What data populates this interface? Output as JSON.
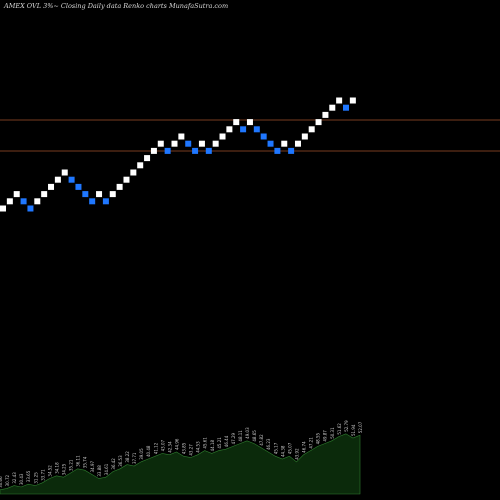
{
  "chart_data": {
    "type": "renko",
    "title": "AMEX  OVL  3%~  Closing Daily data  Renko  charts MunafaSutra.com",
    "reference_lines": [
      "upper",
      "lower"
    ],
    "bricks": [
      {
        "level": 0,
        "dir": "up"
      },
      {
        "level": 1,
        "dir": "up"
      },
      {
        "level": 2,
        "dir": "up"
      },
      {
        "level": 1,
        "dir": "down"
      },
      {
        "level": 0,
        "dir": "down"
      },
      {
        "level": 1,
        "dir": "up"
      },
      {
        "level": 2,
        "dir": "up"
      },
      {
        "level": 3,
        "dir": "up"
      },
      {
        "level": 4,
        "dir": "up"
      },
      {
        "level": 5,
        "dir": "up"
      },
      {
        "level": 4,
        "dir": "down"
      },
      {
        "level": 3,
        "dir": "down"
      },
      {
        "level": 2,
        "dir": "down"
      },
      {
        "level": 1,
        "dir": "down"
      },
      {
        "level": 2,
        "dir": "up"
      },
      {
        "level": 1,
        "dir": "down"
      },
      {
        "level": 2,
        "dir": "up"
      },
      {
        "level": 3,
        "dir": "up"
      },
      {
        "level": 4,
        "dir": "up"
      },
      {
        "level": 5,
        "dir": "up"
      },
      {
        "level": 6,
        "dir": "up"
      },
      {
        "level": 7,
        "dir": "up"
      },
      {
        "level": 8,
        "dir": "up"
      },
      {
        "level": 9,
        "dir": "up"
      },
      {
        "level": 8,
        "dir": "down"
      },
      {
        "level": 9,
        "dir": "up"
      },
      {
        "level": 10,
        "dir": "up"
      },
      {
        "level": 9,
        "dir": "down"
      },
      {
        "level": 8,
        "dir": "down"
      },
      {
        "level": 9,
        "dir": "up"
      },
      {
        "level": 8,
        "dir": "down"
      },
      {
        "level": 9,
        "dir": "up"
      },
      {
        "level": 10,
        "dir": "up"
      },
      {
        "level": 11,
        "dir": "up"
      },
      {
        "level": 12,
        "dir": "up"
      },
      {
        "level": 11,
        "dir": "down"
      },
      {
        "level": 12,
        "dir": "up"
      },
      {
        "level": 11,
        "dir": "down"
      },
      {
        "level": 10,
        "dir": "down"
      },
      {
        "level": 9,
        "dir": "down"
      },
      {
        "level": 8,
        "dir": "down"
      },
      {
        "level": 9,
        "dir": "up"
      },
      {
        "level": 8,
        "dir": "down"
      },
      {
        "level": 9,
        "dir": "up"
      },
      {
        "level": 10,
        "dir": "up"
      },
      {
        "level": 11,
        "dir": "up"
      },
      {
        "level": 12,
        "dir": "up"
      },
      {
        "level": 13,
        "dir": "up"
      },
      {
        "level": 14,
        "dir": "up"
      },
      {
        "level": 15,
        "dir": "up"
      },
      {
        "level": 14,
        "dir": "down"
      },
      {
        "level": 15,
        "dir": "up"
      }
    ],
    "volume_labels": [
      "30.66",
      "30.72",
      "32.43",
      "30.43",
      "33.65",
      "31.25",
      "33.71",
      "34.52",
      "34.18",
      "34.25",
      "35.21",
      "36.11",
      "35.74",
      "34.97",
      "33.88",
      "34.61",
      "36.42",
      "36.53",
      "38.22",
      "37.71",
      "39.05",
      "40.48",
      "41.12",
      "43.07",
      "42.34",
      "44.96",
      "43.85",
      "43.27",
      "44.53",
      "45.61",
      "44.18",
      "45.21",
      "46.44",
      "47.29",
      "48.11",
      "49.03",
      "48.65",
      "47.82",
      "46.23",
      "45.17",
      "44.38",
      "45.07",
      "43.92",
      "46.74",
      "47.21",
      "48.55",
      "49.87",
      "50.31",
      "51.62",
      "52.79",
      "51.94",
      "52.07"
    ],
    "volume_heights": [
      3,
      4,
      6,
      5,
      7,
      6,
      8,
      11,
      13,
      12,
      15,
      18,
      17,
      14,
      11,
      12,
      16,
      18,
      21,
      20,
      23,
      25,
      27,
      29,
      28,
      30,
      27,
      26,
      28,
      31,
      29,
      31,
      32,
      34,
      36,
      38,
      36,
      33,
      30,
      27,
      25,
      27,
      23,
      28,
      31,
      34,
      36,
      38,
      41,
      43,
      40,
      42
    ],
    "colors": {
      "background": "#000000",
      "up": "#ffffff",
      "down": "#1f77ff",
      "reference_line": "#a0522d",
      "volume_fill": "#0b2a0b",
      "volume_edge": "#2e7d2e"
    },
    "grid": false
  }
}
